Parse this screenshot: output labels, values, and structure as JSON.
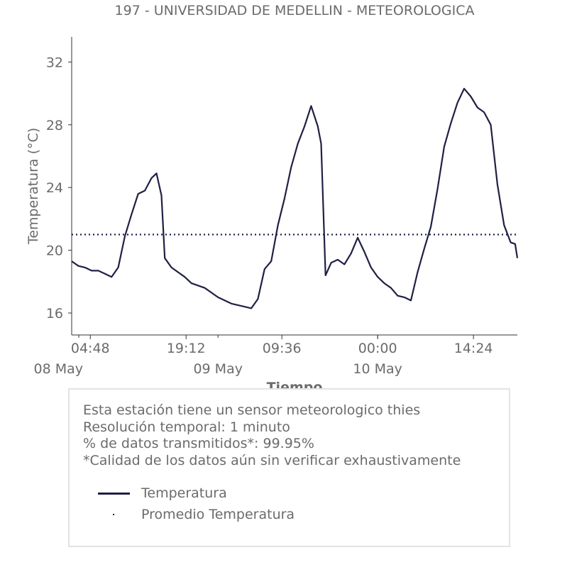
{
  "chart_data": {
    "type": "line",
    "title": "197 - UNIVERSIDAD DE MEDELLIN - METEOROLOGICA",
    "xlabel": "Tiempo",
    "ylabel": "Temperatura (°C)",
    "ylim": [
      14.6,
      33.6
    ],
    "xlim": [
      "2023-05-08 02:00",
      "2023-05-10 21:00"
    ],
    "y_ticks": [
      "16",
      "20",
      "24",
      "28",
      "32"
    ],
    "x_ticks": [
      {
        "time": "2023-05-08 04:48",
        "label": "04:48",
        "date_label": ""
      },
      {
        "time": "2023-05-08 19:12",
        "label": "19:12",
        "date_label": ""
      },
      {
        "time": "2023-05-09 09:36",
        "label": "09:36",
        "date_label": ""
      },
      {
        "time": "2023-05-10 00:00",
        "label": "00:00",
        "date_label": ""
      },
      {
        "time": "2023-05-10 14:24",
        "label": "14:24",
        "date_label": ""
      }
    ],
    "date_labels": [
      {
        "time": "2023-05-08 00:00",
        "label": "08 May"
      },
      {
        "time": "2023-05-09 00:00",
        "label": "09 May"
      },
      {
        "time": "2023-05-10 00:00",
        "label": "10 May"
      }
    ],
    "series": [
      {
        "name": "Temperatura",
        "color": "#1f2044",
        "style": "solid",
        "points": [
          [
            "2023-05-08 02:00",
            19.3
          ],
          [
            "2023-05-08 03:00",
            19.0
          ],
          [
            "2023-05-08 04:00",
            18.9
          ],
          [
            "2023-05-08 05:00",
            18.7
          ],
          [
            "2023-05-08 06:00",
            18.7
          ],
          [
            "2023-05-08 07:00",
            18.5
          ],
          [
            "2023-05-08 08:00",
            18.3
          ],
          [
            "2023-05-08 09:00",
            18.9
          ],
          [
            "2023-05-08 10:00",
            20.9
          ],
          [
            "2023-05-08 11:00",
            22.3
          ],
          [
            "2023-05-08 12:00",
            23.6
          ],
          [
            "2023-05-08 13:00",
            23.8
          ],
          [
            "2023-05-08 14:00",
            24.6
          ],
          [
            "2023-05-08 14:45",
            24.9
          ],
          [
            "2023-05-08 15:30",
            23.5
          ],
          [
            "2023-05-08 16:00",
            19.5
          ],
          [
            "2023-05-08 17:00",
            18.9
          ],
          [
            "2023-05-08 18:00",
            18.6
          ],
          [
            "2023-05-08 19:00",
            18.3
          ],
          [
            "2023-05-08 20:00",
            17.9
          ],
          [
            "2023-05-08 22:00",
            17.6
          ],
          [
            "2023-05-09 00:00",
            17.0
          ],
          [
            "2023-05-09 02:00",
            16.6
          ],
          [
            "2023-05-09 04:00",
            16.4
          ],
          [
            "2023-05-09 05:00",
            16.3
          ],
          [
            "2023-05-09 06:00",
            16.9
          ],
          [
            "2023-05-09 07:00",
            18.8
          ],
          [
            "2023-05-09 08:00",
            19.3
          ],
          [
            "2023-05-09 09:00",
            21.6
          ],
          [
            "2023-05-09 10:00",
            23.3
          ],
          [
            "2023-05-09 11:00",
            25.3
          ],
          [
            "2023-05-09 12:00",
            26.8
          ],
          [
            "2023-05-09 13:00",
            27.9
          ],
          [
            "2023-05-09 14:00",
            29.2
          ],
          [
            "2023-05-09 15:00",
            27.9
          ],
          [
            "2023-05-09 15:30",
            26.8
          ],
          [
            "2023-05-09 16:10",
            18.4
          ],
          [
            "2023-05-09 17:00",
            19.2
          ],
          [
            "2023-05-09 18:00",
            19.4
          ],
          [
            "2023-05-09 19:00",
            19.1
          ],
          [
            "2023-05-09 20:00",
            19.8
          ],
          [
            "2023-05-09 21:00",
            20.8
          ],
          [
            "2023-05-09 22:00",
            19.9
          ],
          [
            "2023-05-09 23:00",
            18.9
          ],
          [
            "2023-05-10 00:00",
            18.3
          ],
          [
            "2023-05-10 01:00",
            17.9
          ],
          [
            "2023-05-10 02:00",
            17.6
          ],
          [
            "2023-05-10 03:00",
            17.1
          ],
          [
            "2023-05-10 04:00",
            17.0
          ],
          [
            "2023-05-10 05:00",
            16.8
          ],
          [
            "2023-05-10 06:00",
            18.6
          ],
          [
            "2023-05-10 07:00",
            20.1
          ],
          [
            "2023-05-10 08:00",
            21.5
          ],
          [
            "2023-05-10 09:00",
            23.9
          ],
          [
            "2023-05-10 10:00",
            26.6
          ],
          [
            "2023-05-10 11:00",
            28.1
          ],
          [
            "2023-05-10 12:00",
            29.4
          ],
          [
            "2023-05-10 13:00",
            30.3
          ],
          [
            "2023-05-10 14:00",
            29.8
          ],
          [
            "2023-05-10 15:00",
            29.1
          ],
          [
            "2023-05-10 16:00",
            28.8
          ],
          [
            "2023-05-10 17:00",
            28.0
          ],
          [
            "2023-05-10 18:00",
            24.2
          ],
          [
            "2023-05-10 19:00",
            21.6
          ],
          [
            "2023-05-10 20:00",
            20.5
          ],
          [
            "2023-05-10 20:40",
            20.4
          ],
          [
            "2023-05-10 21:00",
            19.5
          ]
        ]
      },
      {
        "name": "Promedio Temperatura",
        "color": "#1f2044",
        "style": "dotted",
        "value": 21.0
      }
    ]
  },
  "info_box": {
    "lines": [
      "Esta estación tiene un sensor meteorologico thies",
      "Resolución temporal: 1 minuto",
      "% de datos transmitidos*: 99.95%",
      "*Calidad de los datos aún sin verificar exhaustivamente"
    ]
  },
  "legend": {
    "items": [
      "Temperatura",
      "Promedio Temperatura"
    ]
  }
}
